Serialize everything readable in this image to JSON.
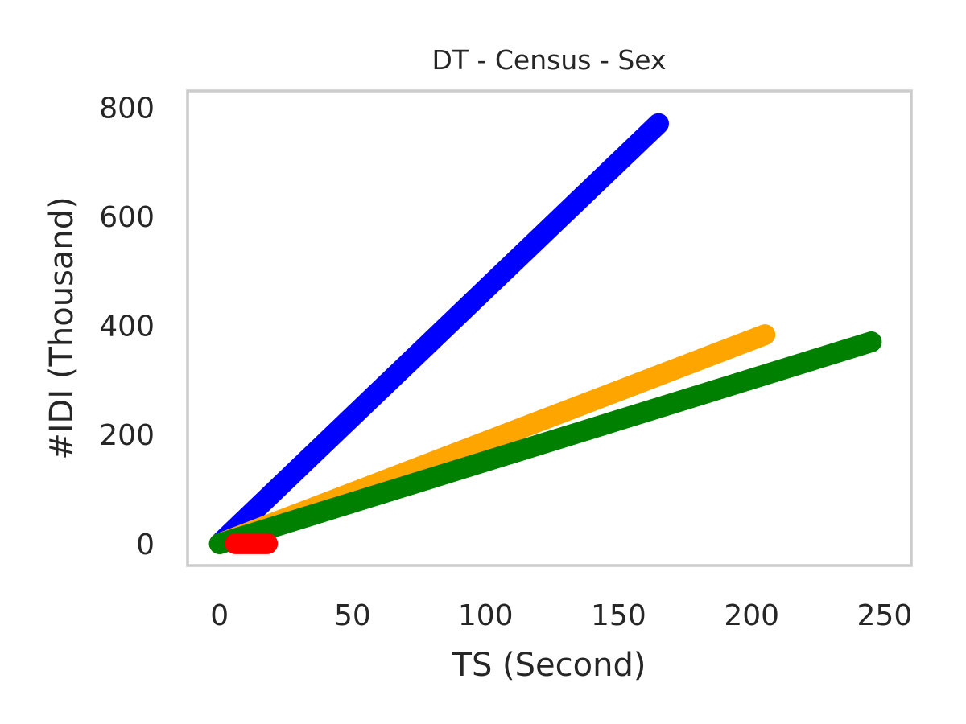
{
  "chart_data": {
    "type": "line",
    "title": "DT - Census - Sex",
    "xlabel": "TS (Second)",
    "ylabel": "#IDI (Thousand)",
    "xlim": [
      -12,
      260
    ],
    "ylim": [
      -40,
      830
    ],
    "xticks": [
      0,
      50,
      100,
      150,
      200,
      250
    ],
    "yticks": [
      0,
      200,
      400,
      600,
      800
    ],
    "grid": false,
    "series": [
      {
        "name": "blue",
        "color": "#0000ff",
        "x": [
          0,
          165
        ],
        "y": [
          0,
          770
        ]
      },
      {
        "name": "orange",
        "color": "#ffa500",
        "x": [
          0,
          205
        ],
        "y": [
          0,
          383
        ]
      },
      {
        "name": "green",
        "color": "#008000",
        "x": [
          0,
          245
        ],
        "y": [
          0,
          370
        ]
      },
      {
        "name": "red",
        "color": "#ff0000",
        "x": [
          6,
          18
        ],
        "y": [
          0,
          0
        ]
      }
    ]
  }
}
